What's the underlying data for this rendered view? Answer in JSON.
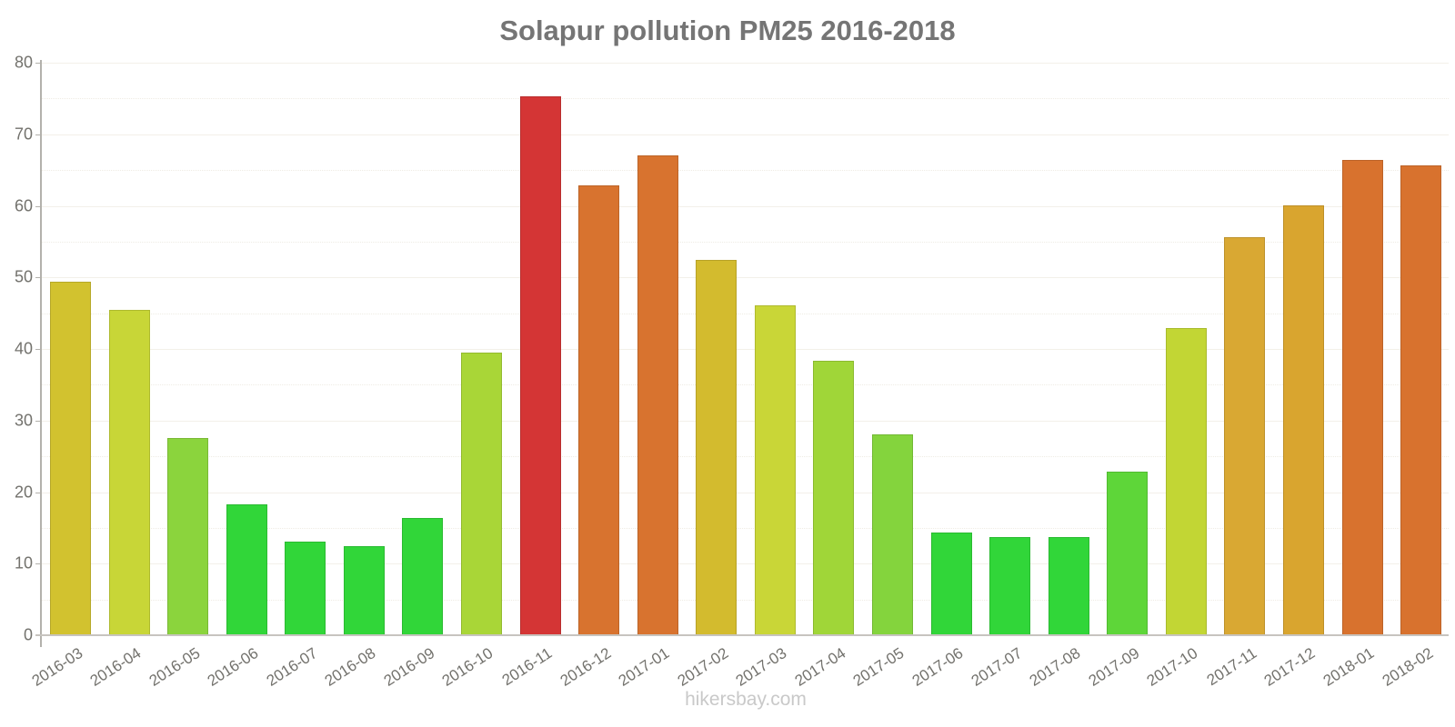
{
  "title": "Solapur pollution PM25 2016-2018",
  "watermark": "hikersbay.com",
  "chart_data": {
    "type": "bar",
    "title": "Solapur pollution PM25 2016-2018",
    "xlabel": "",
    "ylabel": "",
    "ylim": [
      0,
      80
    ],
    "yticks": [
      0,
      10,
      20,
      30,
      40,
      50,
      60,
      70,
      80
    ],
    "grid": "horizontal solid lines at multiples of 10, faint dotted lines at multiples of 5",
    "legend": "none",
    "categories": [
      "2016-03",
      "2016-04",
      "2016-05",
      "2016-06",
      "2016-07",
      "2016-08",
      "2016-09",
      "2016-10",
      "2016-11",
      "2016-12",
      "2017-01",
      "2017-02",
      "2017-03",
      "2017-04",
      "2017-05",
      "2017-06",
      "2017-07",
      "2017-08",
      "2017-09",
      "2017-10",
      "2017-11",
      "2017-12",
      "2018-01",
      "2018-02"
    ],
    "values": [
      49.4,
      45.4,
      27.6,
      18.3,
      13.1,
      12.4,
      16.4,
      39.5,
      75.3,
      62.8,
      67.0,
      52.4,
      46.1,
      38.3,
      28.1,
      14.3,
      13.7,
      13.7,
      22.9,
      42.9,
      55.6,
      60.1,
      66.4,
      65.6
    ],
    "bar_colors": [
      "#d2c22f",
      "#c8d637",
      "#8bd43d",
      "#31d639",
      "#31d639",
      "#31d639",
      "#31d639",
      "#a9d637",
      "#d43535",
      "#d8732f",
      "#d8732f",
      "#d3bb2e",
      "#c9d637",
      "#a0d638",
      "#84d43d",
      "#31d639",
      "#31d639",
      "#31d639",
      "#5ed639",
      "#c2d634",
      "#d9a833",
      "#d9a52f",
      "#d8722e",
      "#d8722e"
    ],
    "color_legend": {
      "green": "#31d639",
      "mid_green": "#5ed639",
      "light_green": "#84d43d",
      "yellow_green": "#a9d637",
      "yellow": "#c8d637",
      "gold": "#d2c22f",
      "amber": "#d9a833",
      "orange": "#d8722e",
      "red": "#d43535"
    },
    "axis_colors": {
      "axis_line": "#b3b1ac",
      "baseline": "#c7c4bf",
      "gridline": "#f3f0e9",
      "tick_label": "#73726d",
      "title": "#757575",
      "watermark": "#c9c9c9"
    }
  }
}
